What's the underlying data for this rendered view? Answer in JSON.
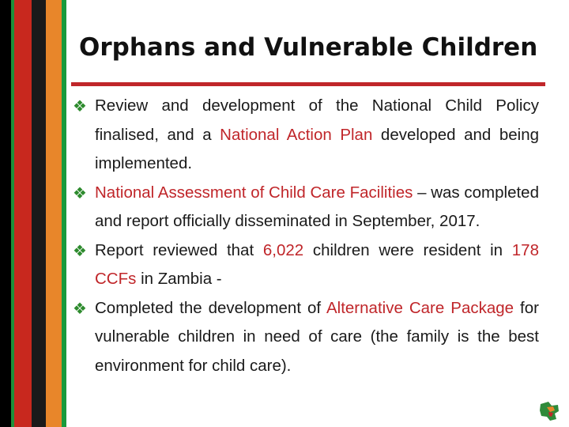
{
  "slide": {
    "title": "Orphans and Vulnerable Children",
    "bullet_glyph": "❖",
    "colors": {
      "accent": "#c0262a",
      "bullet": "#2e8b2e",
      "text": "#1a1a1a"
    },
    "items": [
      {
        "t1": "Review and development of the National Child Policy finalised, and a ",
        "h1": "National Action Plan",
        "t2": " developed and being implemented."
      },
      {
        "h1": "National Assessment of Child Care Facilities",
        "t1": " – was completed and report officially disseminated in September, 2017."
      },
      {
        "t1": "Report reviewed that ",
        "h1": "6,022",
        "t2": " children were resident in ",
        "h2": "178 CCFs",
        "t3": " in Zambia -"
      },
      {
        "t1": " Completed the development of ",
        "h1": "Alternative Care Package",
        "t2": " for vulnerable children in need of care (the family is the best environment for child care)."
      }
    ],
    "corner_icon": "zambia-map-icon"
  }
}
